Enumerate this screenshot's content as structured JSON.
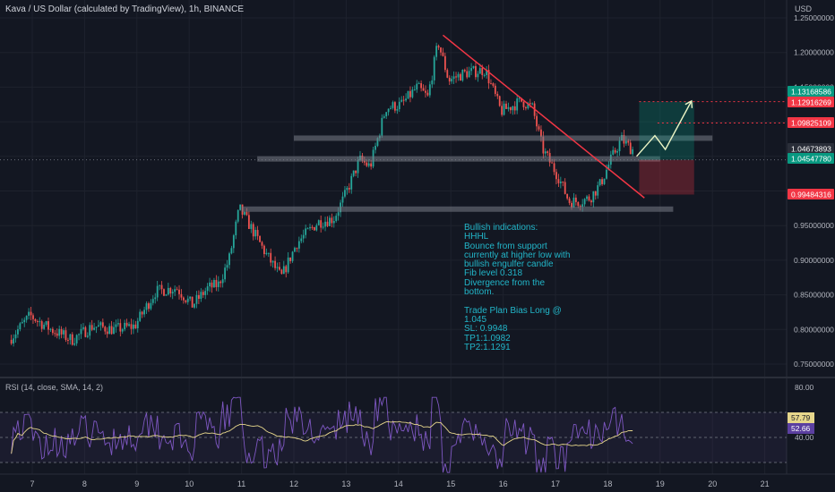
{
  "header": {
    "title": "Kava / US Dollar (calculated by TradingView), 1h, BINANCE",
    "currency": "USD"
  },
  "annotation": {
    "bullish_text": "Bullish indications:\nHHHL\nBounce from support currently at higher low with bullish engulfer candle\nFib level 0.318\nDivergence from the bottom.",
    "plan_text": "Trade Plan Bias Long @\n1.045\nSL: 0.9948\nTP1:1.0982\nTP2:1.1291"
  },
  "rsi": {
    "title": "RSI (14, close, SMA, 14, 2)",
    "levels": [
      80,
      70,
      50,
      30
    ],
    "tick_labels": [
      "80.00",
      "40.00"
    ],
    "current_rsi": "57.79",
    "current_sma": "52.66"
  },
  "price_badges": [
    {
      "label": "1.13168586",
      "color": "#089981"
    },
    {
      "label": "1.12916269",
      "color": "#f23645"
    },
    {
      "label": "1.09825109",
      "color": "#f23645"
    },
    {
      "label": "1.04673893",
      "color": "#2a2e39"
    },
    {
      "label": "1.04547780",
      "color": "#089981"
    },
    {
      "label": "0.99484316",
      "color": "#f23645"
    }
  ],
  "colors": {
    "up": "#26a69a",
    "down": "#ef5350",
    "trendline": "#f23645",
    "rsi": "#7e57c2",
    "rsi_ma": "#e6d68b",
    "note": "#22b6c9"
  },
  "chart_data": {
    "type": "candlestick",
    "title": "Kava / US Dollar (calculated by TradingView), 1h, BINANCE",
    "ylabel": "USD",
    "ylim": [
      0.73,
      1.26
    ],
    "y_ticks": [
      "1.25000000",
      "1.20000000",
      "1.15000000",
      "1.10000000",
      "1.05000000",
      "0.95000000",
      "0.90000000",
      "0.85000000",
      "0.80000000",
      "0.75000000"
    ],
    "x_ticks": [
      "7",
      "8",
      "9",
      "10",
      "11",
      "12",
      "13",
      "14",
      "15",
      "16",
      "17",
      "18",
      "19",
      "20",
      "21"
    ],
    "path": [
      [
        6.6,
        0.785
      ],
      [
        7.0,
        0.82
      ],
      [
        7.4,
        0.8
      ],
      [
        7.8,
        0.785
      ],
      [
        8.2,
        0.805
      ],
      [
        8.6,
        0.8
      ],
      [
        9.0,
        0.805
      ],
      [
        9.4,
        0.855
      ],
      [
        9.8,
        0.86
      ],
      [
        10.1,
        0.835
      ],
      [
        10.4,
        0.86
      ],
      [
        10.6,
        0.865
      ],
      [
        10.8,
        0.9
      ],
      [
        11.0,
        0.975
      ],
      [
        11.2,
        0.95
      ],
      [
        11.5,
        0.91
      ],
      [
        11.8,
        0.875
      ],
      [
        12.1,
        0.925
      ],
      [
        12.5,
        0.955
      ],
      [
        12.8,
        0.96
      ],
      [
        13.0,
        0.99
      ],
      [
        13.3,
        1.045
      ],
      [
        13.5,
        1.035
      ],
      [
        13.8,
        1.12
      ],
      [
        14.1,
        1.125
      ],
      [
        14.4,
        1.15
      ],
      [
        14.6,
        1.135
      ],
      [
        14.8,
        1.215
      ],
      [
        15.0,
        1.16
      ],
      [
        15.3,
        1.17
      ],
      [
        15.7,
        1.175
      ],
      [
        16.0,
        1.115
      ],
      [
        16.4,
        1.13
      ],
      [
        16.6,
        1.12
      ],
      [
        16.8,
        1.06
      ],
      [
        17.1,
        1.02
      ],
      [
        17.3,
        0.985
      ],
      [
        17.5,
        0.985
      ],
      [
        17.7,
        0.99
      ],
      [
        17.9,
        1.01
      ],
      [
        18.1,
        1.045
      ],
      [
        18.3,
        1.075
      ],
      [
        18.5,
        1.06
      ]
    ],
    "support_zones": [
      0.9725,
      1.045,
      1.075
    ],
    "trendline": [
      [
        14.85,
        1.225
      ],
      [
        18.7,
        0.99
      ]
    ],
    "entry": 1.045,
    "stop_loss": 0.9948,
    "take_profit_1": 1.0982,
    "take_profit_2": 1.1291,
    "projection": [
      [
        18.55,
        1.05
      ],
      [
        18.9,
        1.08
      ],
      [
        19.1,
        1.06
      ],
      [
        19.6,
        1.13
      ]
    ]
  }
}
